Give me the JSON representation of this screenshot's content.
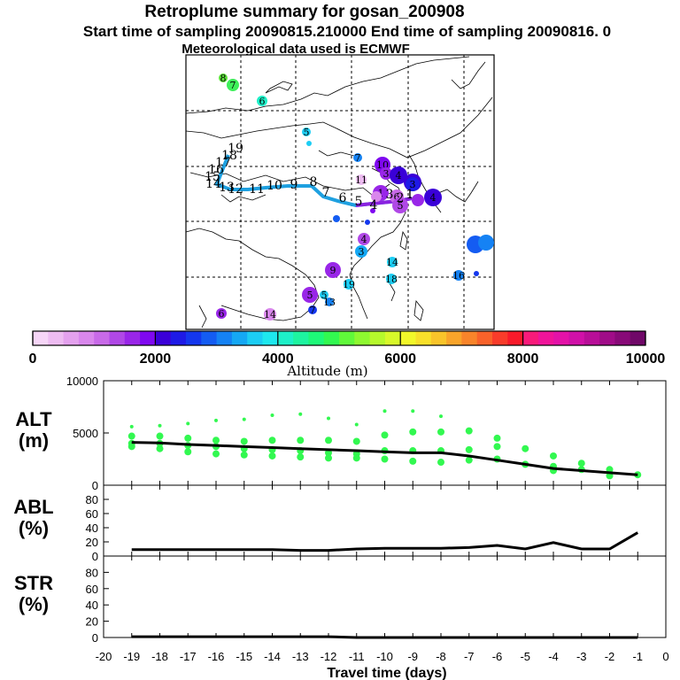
{
  "title": "Retroplume summary for gosan_200908",
  "subtitle": "Start time of sampling 20090815.210000     End time of sampling 20090816.     0",
  "met_line": "Meteorological data used is ECMWF",
  "colorbar": {
    "label": "Altitude (m)",
    "ticks": [
      "0",
      "2000",
      "4000",
      "6000",
      "8000",
      "10000"
    ],
    "range": [
      0,
      10000
    ]
  },
  "map": {
    "track_labels": [
      "19",
      "18",
      "17",
      "16",
      "15",
      "14",
      "13",
      "12",
      "11",
      "10",
      "9",
      "8",
      "7",
      "6",
      "5",
      "4",
      "3",
      "2",
      "1"
    ],
    "cluster_labels": [
      "8",
      "7",
      "6",
      "5",
      "6",
      "7",
      "10",
      "3",
      "4",
      "2",
      "1",
      "6",
      "5",
      "3",
      "4",
      "11",
      "7",
      "8",
      "4",
      "3",
      "14",
      "18",
      "19",
      "16",
      "10",
      "9",
      "5",
      "5",
      "13",
      "7",
      "6",
      "14"
    ]
  },
  "chart_data": [
    {
      "type": "line",
      "name": "ALT",
      "ylabel": "ALT\n(m)",
      "ylabel_lines": [
        "ALT",
        "(m)"
      ],
      "ylim": [
        0,
        10000
      ],
      "yticks": [
        "10000",
        "5000",
        "0"
      ],
      "x": [
        -19,
        -18,
        -17,
        -16,
        -15,
        -14,
        -13,
        -12,
        -11,
        -10,
        -9,
        -8,
        -7,
        -6,
        -5,
        -4,
        -3,
        -2,
        -1
      ],
      "values": [
        4100,
        4050,
        3900,
        3800,
        3700,
        3600,
        3500,
        3400,
        3300,
        3200,
        3100,
        3100,
        2800,
        2400,
        2000,
        1600,
        1400,
        1200,
        1000
      ],
      "points": [
        [
          -19,
          5600
        ],
        [
          -19,
          4700
        ],
        [
          -19,
          4000
        ],
        [
          -19,
          3700
        ],
        [
          -18,
          5700
        ],
        [
          -18,
          4700
        ],
        [
          -18,
          4000
        ],
        [
          -18,
          3500
        ],
        [
          -17,
          5900
        ],
        [
          -17,
          4500
        ],
        [
          -17,
          3800
        ],
        [
          -17,
          3200
        ],
        [
          -16,
          6200
        ],
        [
          -16,
          4300
        ],
        [
          -16,
          3700
        ],
        [
          -16,
          3000
        ],
        [
          -15,
          6300
        ],
        [
          -15,
          4200
        ],
        [
          -15,
          3500
        ],
        [
          -15,
          2900
        ],
        [
          -14,
          6700
        ],
        [
          -14,
          4300
        ],
        [
          -14,
          3400
        ],
        [
          -14,
          2800
        ],
        [
          -13,
          6800
        ],
        [
          -13,
          4300
        ],
        [
          -13,
          3300
        ],
        [
          -13,
          2700
        ],
        [
          -12,
          6400
        ],
        [
          -12,
          4300
        ],
        [
          -12,
          3100
        ],
        [
          -12,
          2600
        ],
        [
          -11,
          5800
        ],
        [
          -11,
          4200
        ],
        [
          -11,
          3000
        ],
        [
          -11,
          2600
        ],
        [
          -10,
          7100
        ],
        [
          -10,
          4800
        ],
        [
          -10,
          3300
        ],
        [
          -10,
          2500
        ],
        [
          -9,
          7100
        ],
        [
          -9,
          5100
        ],
        [
          -9,
          3300
        ],
        [
          -9,
          2300
        ],
        [
          -8,
          6600
        ],
        [
          -8,
          5100
        ],
        [
          -8,
          3300
        ],
        [
          -8,
          2200
        ],
        [
          -7,
          5200
        ],
        [
          -7,
          3400
        ],
        [
          -7,
          2400
        ],
        [
          -6,
          4500
        ],
        [
          -6,
          3700
        ],
        [
          -6,
          2500
        ],
        [
          -5,
          3500
        ],
        [
          -5,
          2000
        ],
        [
          -4,
          2800
        ],
        [
          -4,
          1800
        ],
        [
          -4,
          1400
        ],
        [
          -3,
          2100
        ],
        [
          -3,
          1500
        ],
        [
          -2,
          1500
        ],
        [
          -2,
          900
        ],
        [
          -1,
          1000
        ]
      ]
    },
    {
      "type": "line",
      "name": "ABL",
      "ylabel_lines": [
        "ABL",
        "(%)"
      ],
      "ylim": [
        0,
        100
      ],
      "yticks": [
        "80",
        "60",
        "40",
        "20",
        "0"
      ],
      "x": [
        -19,
        -18,
        -17,
        -16,
        -15,
        -14,
        -13,
        -12,
        -11,
        -10,
        -9,
        -8,
        -7,
        -6,
        -5,
        -4,
        -3,
        -2,
        -1
      ],
      "values": [
        9,
        9,
        9,
        9,
        9,
        9,
        8,
        8,
        10,
        11,
        11,
        11,
        12,
        15,
        10,
        19,
        10,
        10,
        33
      ]
    },
    {
      "type": "line",
      "name": "STR",
      "ylabel_lines": [
        "STR",
        "(%)"
      ],
      "ylim": [
        0,
        100
      ],
      "yticks": [
        "80",
        "60",
        "40",
        "20",
        "0"
      ],
      "x": [
        -19,
        -18,
        -17,
        -16,
        -15,
        -14,
        -13,
        -12,
        -11,
        -10,
        -9,
        -8,
        -7,
        -6,
        -5,
        -4,
        -3,
        -2,
        -1
      ],
      "values": [
        1,
        1,
        1,
        1,
        1,
        1,
        1,
        1,
        0,
        0,
        0,
        0,
        0,
        0,
        0,
        0,
        0,
        0,
        0
      ],
      "xlabel": "Travel time (days)",
      "xticks": [
        "-20",
        "-19",
        "-18",
        "-17",
        "-16",
        "-15",
        "-14",
        "-13",
        "-12",
        "-11",
        "-10",
        "-9",
        "-8",
        "-7",
        "-6",
        "-5",
        "-4",
        "-3",
        "-2",
        "-1",
        "0"
      ],
      "xlim": [
        -20,
        0
      ]
    }
  ]
}
